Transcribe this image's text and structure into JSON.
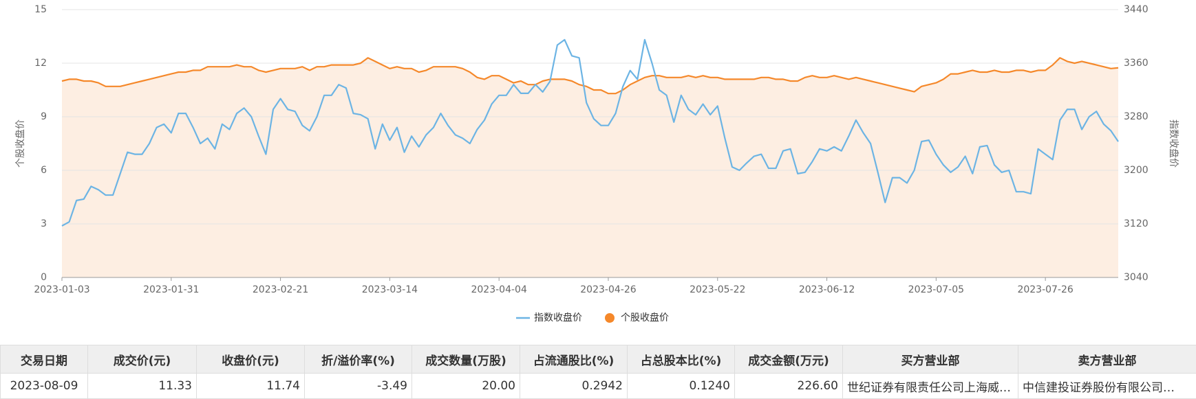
{
  "chart_data": {
    "type": "line",
    "ylabel": "个股收盘价",
    "y2label": "指数收盘价",
    "categories": [
      "2023-01-03",
      null,
      null,
      null,
      null,
      null,
      null,
      null,
      null,
      null,
      null,
      null,
      null,
      null,
      null,
      "2023-01-31",
      null,
      null,
      null,
      null,
      null,
      null,
      null,
      null,
      null,
      null,
      null,
      null,
      null,
      null,
      "2023-02-21",
      null,
      null,
      null,
      null,
      null,
      null,
      null,
      null,
      null,
      null,
      null,
      null,
      null,
      null,
      "2023-03-14",
      null,
      null,
      null,
      null,
      null,
      null,
      null,
      null,
      null,
      null,
      null,
      null,
      null,
      null,
      "2023-04-04",
      null,
      null,
      null,
      null,
      null,
      null,
      null,
      null,
      null,
      null,
      null,
      null,
      null,
      null,
      "2023-04-26",
      null,
      null,
      null,
      null,
      null,
      null,
      null,
      null,
      null,
      null,
      null,
      null,
      null,
      null,
      "2023-05-22",
      null,
      null,
      null,
      null,
      null,
      null,
      null,
      null,
      null,
      null,
      null,
      null,
      null,
      null,
      "2023-06-12",
      null,
      null,
      null,
      null,
      null,
      null,
      null,
      null,
      null,
      null,
      null,
      null,
      null,
      null,
      "2023-07-05",
      null,
      null,
      null,
      null,
      null,
      null,
      null,
      null,
      null,
      null,
      null,
      null,
      null,
      null,
      "2023-07-26",
      null,
      null,
      null,
      null,
      null,
      null,
      null,
      null,
      null,
      null
    ],
    "series": [
      {
        "name": "指数收盘价",
        "color": "#6cb4e4",
        "axis": "y2",
        "values": [
          3117,
          3123,
          3155,
          3157,
          3176,
          3171,
          3163,
          3163,
          3195,
          3227,
          3224,
          3224,
          3240,
          3264,
          3269,
          3256,
          3285,
          3285,
          3264,
          3240,
          3248,
          3232,
          3269,
          3261,
          3285,
          3293,
          3280,
          3251,
          3224,
          3291,
          3307,
          3291,
          3288,
          3267,
          3259,
          3280,
          3312,
          3312,
          3328,
          3323,
          3285,
          3283,
          3277,
          3232,
          3269,
          3245,
          3264,
          3227,
          3251,
          3235,
          3253,
          3264,
          3285,
          3267,
          3253,
          3248,
          3240,
          3261,
          3275,
          3299,
          3312,
          3312,
          3328,
          3315,
          3315,
          3328,
          3317,
          3333,
          3387,
          3395,
          3371,
          3368,
          3301,
          3277,
          3267,
          3267,
          3285,
          3325,
          3349,
          3336,
          3395,
          3360,
          3320,
          3312,
          3272,
          3312,
          3291,
          3283,
          3299,
          3283,
          3296,
          3248,
          3205,
          3200,
          3211,
          3221,
          3224,
          3203,
          3203,
          3229,
          3232,
          3195,
          3197,
          3213,
          3232,
          3229,
          3235,
          3229,
          3251,
          3275,
          3256,
          3240,
          3197,
          3152,
          3189,
          3189,
          3181,
          3200,
          3243,
          3245,
          3224,
          3208,
          3197,
          3205,
          3221,
          3195,
          3235,
          3237,
          3208,
          3197,
          3200,
          3168,
          3168,
          3165,
          3232,
          3224,
          3216,
          3275,
          3291,
          3291,
          3261,
          3280,
          3288,
          3269,
          3259,
          3243
        ]
      },
      {
        "name": "个股收盘价",
        "color": "#f5882a",
        "fill": "#fdeee2",
        "values": [
          11.0,
          11.1,
          11.1,
          11.0,
          11.0,
          10.9,
          10.7,
          10.7,
          10.7,
          10.8,
          10.9,
          11.0,
          11.1,
          11.2,
          11.3,
          11.4,
          11.5,
          11.5,
          11.6,
          11.6,
          11.8,
          11.8,
          11.8,
          11.8,
          11.9,
          11.8,
          11.8,
          11.6,
          11.5,
          11.6,
          11.7,
          11.7,
          11.7,
          11.8,
          11.6,
          11.8,
          11.8,
          11.9,
          11.9,
          11.9,
          11.9,
          12.0,
          12.3,
          12.1,
          11.9,
          11.7,
          11.8,
          11.7,
          11.7,
          11.5,
          11.6,
          11.8,
          11.8,
          11.8,
          11.8,
          11.7,
          11.5,
          11.2,
          11.1,
          11.3,
          11.3,
          11.1,
          10.9,
          11.0,
          10.8,
          10.8,
          11.0,
          11.1,
          11.1,
          11.1,
          11.0,
          10.8,
          10.7,
          10.5,
          10.5,
          10.3,
          10.3,
          10.5,
          10.8,
          11.0,
          11.2,
          11.3,
          11.3,
          11.2,
          11.2,
          11.2,
          11.3,
          11.2,
          11.3,
          11.2,
          11.2,
          11.1,
          11.1,
          11.1,
          11.1,
          11.1,
          11.2,
          11.2,
          11.1,
          11.1,
          11.0,
          11.0,
          11.2,
          11.3,
          11.2,
          11.2,
          11.3,
          11.2,
          11.1,
          11.2,
          11.1,
          11.0,
          10.9,
          10.8,
          10.7,
          10.6,
          10.5,
          10.4,
          10.7,
          10.8,
          10.9,
          11.1,
          11.4,
          11.4,
          11.5,
          11.6,
          11.5,
          11.5,
          11.6,
          11.5,
          11.5,
          11.6,
          11.6,
          11.5,
          11.6,
          11.6,
          11.9,
          12.3,
          12.1,
          12.0,
          12.1,
          12.0,
          11.9,
          11.8,
          11.7,
          11.74
        ]
      }
    ],
    "ylim": [
      0,
      15
    ],
    "yticks": [
      0,
      3,
      6,
      9,
      12,
      15
    ],
    "y2lim": [
      3040,
      3440
    ],
    "y2ticks": [
      3040,
      3120,
      3200,
      3280,
      3360,
      3440
    ],
    "grid": true,
    "legend": "bottom"
  },
  "table": {
    "columns": [
      "交易日期",
      "成交价(元)",
      "收盘价(元)",
      "折/溢价率(%)",
      "成交数量(万股)",
      "占流通股比(%)",
      "占总股本比(%)",
      "成交金额(万元)",
      "买方营业部",
      "卖方营业部"
    ],
    "rows": [
      [
        "2023-08-09",
        "11.33",
        "11.74",
        "-3.49",
        "20.00",
        "0.2942",
        "0.1240",
        "226.60",
        "世纪证券有限责任公司上海威…",
        "中信建投证券股份有限公司…"
      ]
    ]
  }
}
